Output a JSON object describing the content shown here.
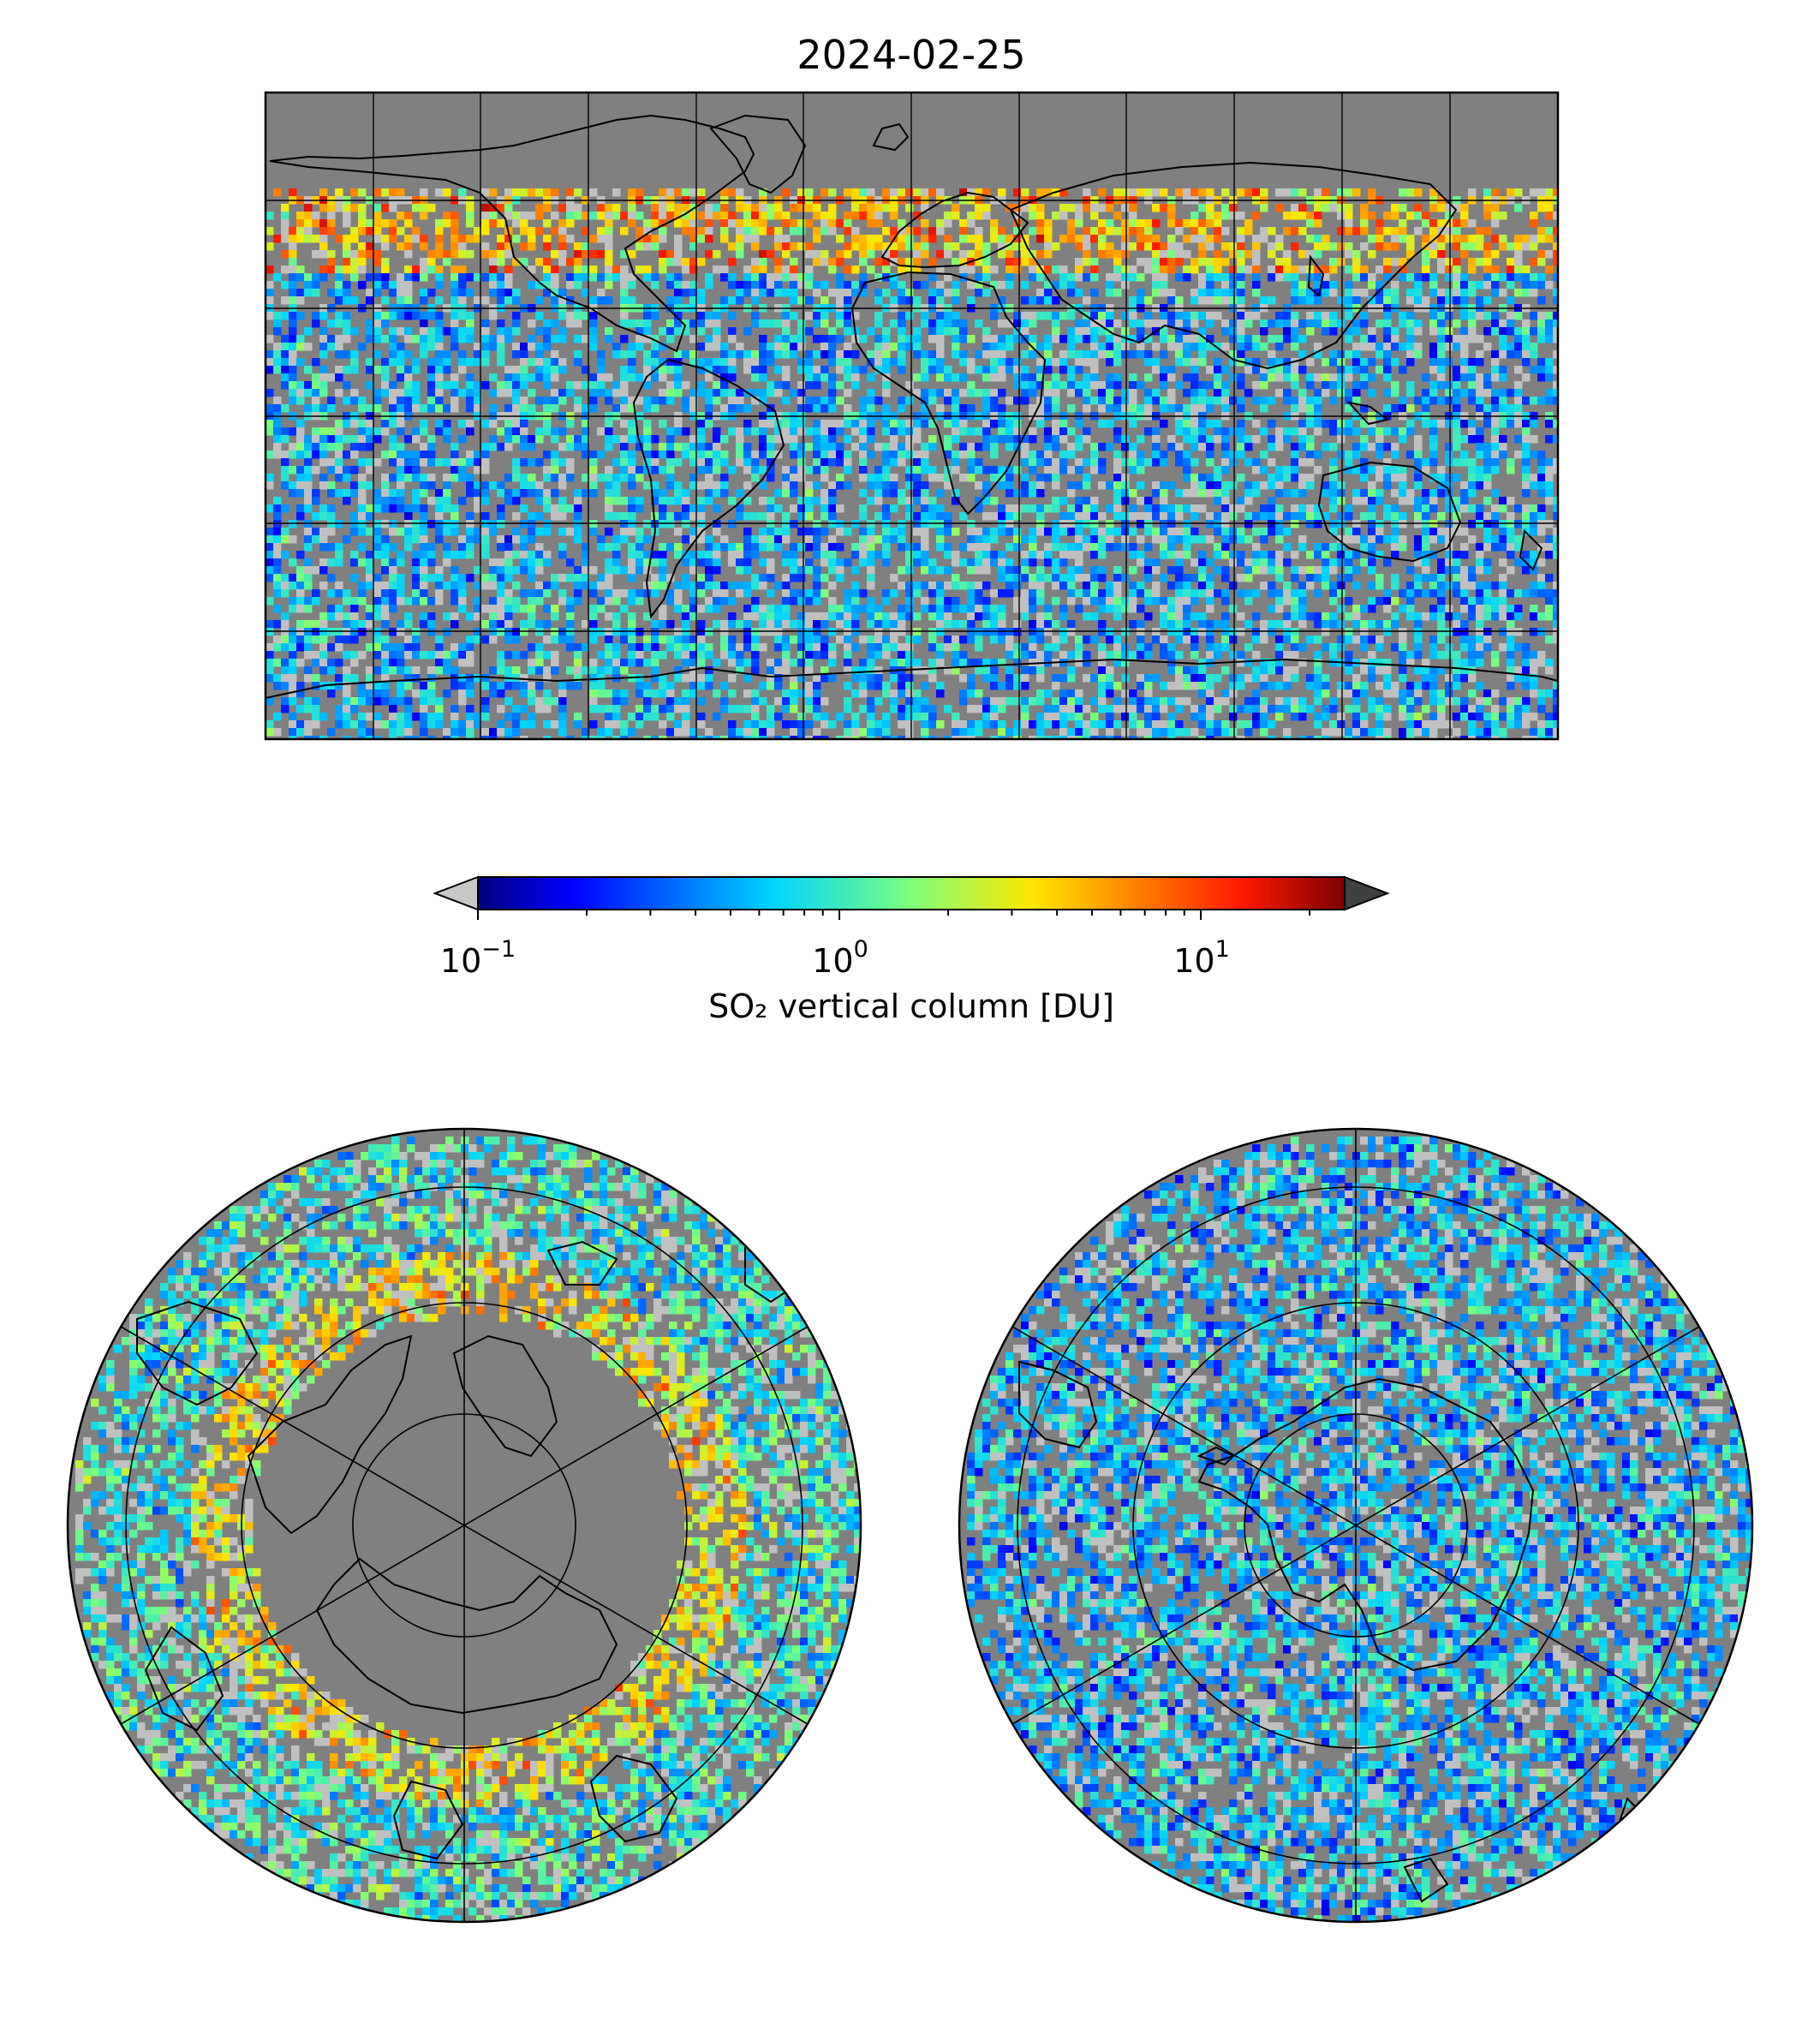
{
  "figure": {
    "title": "2024-02-25"
  },
  "colorbar": {
    "label_main": "SO",
    "label_sub": "₂",
    "label_rest": " vertical column [DU]",
    "ticks": [
      {
        "base": "10",
        "exp": "−1",
        "value": 0.1
      },
      {
        "base": "10",
        "exp": "0",
        "value": 1
      },
      {
        "base": "10",
        "exp": "1",
        "value": 10
      }
    ],
    "range": [
      0.1,
      25
    ],
    "scale": "log",
    "colormap": "jet",
    "extend_under_color": "#c8c8c8",
    "extend_over_color": "#404040"
  },
  "maps": {
    "global": {
      "projection": "plate-carree",
      "background": "#808080",
      "coastline_color": "#000000"
    },
    "north_polar": {
      "projection": "north-polar-stereographic",
      "background": "#808080"
    },
    "south_polar": {
      "projection": "south-polar-stereographic",
      "background": "#808080"
    }
  },
  "colors": {
    "no_data": "#808080",
    "below_range": "#c0c0c0"
  }
}
